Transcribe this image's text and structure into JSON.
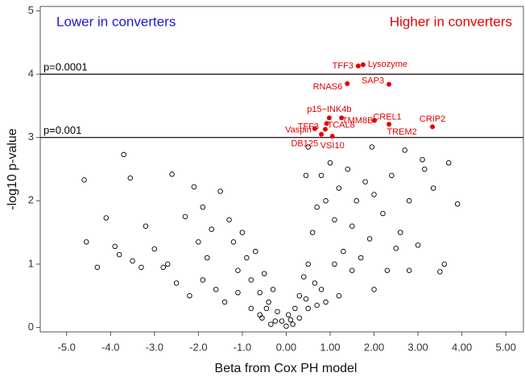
{
  "chart_data": {
    "type": "scatter",
    "x_label": "Beta from Cox PH model",
    "y_label": "-log10 p-value",
    "xlim": [
      -5.6,
      5.4
    ],
    "ylim": [
      -0.07,
      5.07
    ],
    "xticks": [
      {
        "value": -5,
        "label": "-5.0"
      },
      {
        "value": -4,
        "label": "-4.0"
      },
      {
        "value": -3,
        "label": "-3.0"
      },
      {
        "value": -2,
        "label": "-2.0"
      },
      {
        "value": -1,
        "label": "-1.0"
      },
      {
        "value": 0,
        "label": "0.00"
      },
      {
        "value": 1,
        "label": "1.00"
      },
      {
        "value": 2,
        "label": "2.00"
      },
      {
        "value": 3,
        "label": "3.00"
      },
      {
        "value": 4,
        "label": "4.00"
      },
      {
        "value": 5,
        "label": "5.00"
      }
    ],
    "yticks": [
      0,
      1,
      2,
      3,
      4,
      5
    ],
    "annotations": [
      {
        "text": "Lower in converters",
        "color": "#1a1ad0"
      },
      {
        "text": "Higher in converters",
        "color": "#e00000"
      }
    ],
    "reference_lines": [
      {
        "y": 4,
        "label": "p=0.0001"
      },
      {
        "y": 3,
        "label": "p=0.001"
      }
    ],
    "series": [
      {
        "color": "#000000",
        "marker": "open",
        "x": [
          -4.6,
          -4.55,
          -4.1,
          -3.7,
          -3.55,
          -3.9,
          -3.5,
          -3.2,
          -3.0,
          -2.8,
          -2.6,
          -2.3,
          -2.1,
          -2.0,
          -1.9,
          -1.8,
          -1.5,
          -1.3,
          -1.2,
          -1.1,
          -1.0,
          -0.9,
          -0.8,
          -0.7,
          -0.6,
          -0.5,
          -0.4,
          -0.3,
          -0.2,
          -0.1,
          0,
          0.1,
          0.2,
          0.3,
          0.4,
          0.5,
          0.6,
          0.7,
          0.8,
          0.9,
          1.0,
          1.1,
          1.2,
          1.4,
          1.5,
          1.6,
          1.8,
          1.9,
          2.0,
          2.2,
          2.4,
          2.6,
          2.8,
          3.0,
          3.1,
          3.15,
          3.35,
          3.6,
          3.7,
          3.9,
          3.5,
          2.3,
          1.5,
          0.8,
          -2.5,
          -1.6,
          -3.3,
          -4.3,
          -1.4,
          -0.6,
          0.5,
          1.2,
          2.0,
          2.8,
          0.3,
          -0.25,
          0.15,
          -0.8,
          0.9,
          1.7,
          -2.2,
          -1.9,
          -1.1,
          0.65,
          1.3,
          2.5,
          -0.45,
          0.45,
          2.7,
          1.95,
          0.5,
          0.45,
          -1.7,
          -2.7,
          -3.8,
          1.1,
          0.7,
          -0.35,
          0.05,
          -0.55
        ],
        "y": [
          2.33,
          1.35,
          1.73,
          2.73,
          2.36,
          1.28,
          1.05,
          1.6,
          1.24,
          0.95,
          2.42,
          1.75,
          2.22,
          1.35,
          1.9,
          1.1,
          2.15,
          1.7,
          1.35,
          0.9,
          1.5,
          1.1,
          0.75,
          1.2,
          0.55,
          0.85,
          0.4,
          0.6,
          0.25,
          0.1,
          0.02,
          0.12,
          0.3,
          0.5,
          0.8,
          1.0,
          1.5,
          1.9,
          2.4,
          2.0,
          2.6,
          1.7,
          2.2,
          2.5,
          1.6,
          2.0,
          2.3,
          1.4,
          2.1,
          1.8,
          2.4,
          1.5,
          2.0,
          1.3,
          2.65,
          2.5,
          2.2,
          1.0,
          2.6,
          1.95,
          0.88,
          0.9,
          0.9,
          0.6,
          0.7,
          0.6,
          0.95,
          0.95,
          0.4,
          0.2,
          0.3,
          0.5,
          0.6,
          0.9,
          0.15,
          0.1,
          0.05,
          0.3,
          0.4,
          1.1,
          0.5,
          0.75,
          0.55,
          0.7,
          1.2,
          1.25,
          0.3,
          0.45,
          2.8,
          2.85,
          2.85,
          2.4,
          1.55,
          1.0,
          1.15,
          1.0,
          0.35,
          0.05,
          0.2,
          0.15
        ]
      },
      {
        "color": "#e00000",
        "marker": "filled",
        "x": [
          1.64,
          1.75,
          1.39,
          2.34,
          0.98,
          1.26,
          2.01,
          3.33,
          0.89,
          0.92,
          0.65,
          2.34,
          0.8,
          1.05
        ],
        "y": [
          4.13,
          4.15,
          3.85,
          3.84,
          3.31,
          3.31,
          3.27,
          3.17,
          3.13,
          3.22,
          3.14,
          3.21,
          3.05,
          3.02
        ],
        "labels": [
          "TFF3",
          "Lysozyme",
          "RNAS6",
          "SAP3",
          "p15−INK4b",
          "TMM8B",
          "CREL1",
          "CRIP2",
          "TFF3",
          "TCAL8",
          "Vaspin",
          "TREM2",
          "DB125",
          "VSI10"
        ]
      }
    ]
  }
}
